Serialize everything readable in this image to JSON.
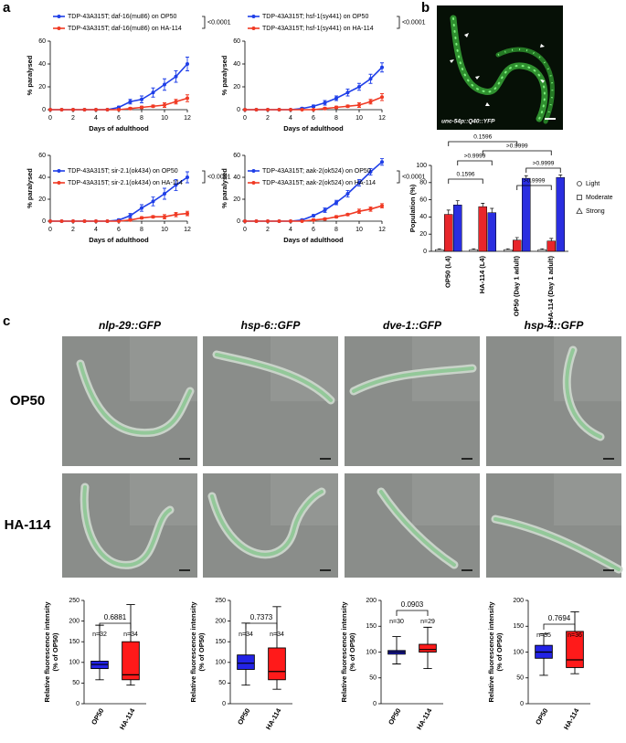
{
  "panel_labels": [
    "a",
    "b",
    "c"
  ],
  "micrograph_b": {
    "caption": "unc-54p::Q40::YFP"
  },
  "micrographs_c": {
    "columns": [
      "nlp-29::GFP",
      "hsp-6::GFP",
      "dve-1::GFP",
      "hsp-4::GFP"
    ],
    "rows": [
      "OP50",
      "HA-114"
    ]
  },
  "chart_data": [
    {
      "type": "line",
      "xlabel": "Days of adulthood",
      "ylabel": "% paralysed",
      "xlim": [
        0,
        12
      ],
      "ylim": [
        0,
        60
      ],
      "xticks": [
        0,
        2,
        4,
        6,
        8,
        10,
        12
      ],
      "yticks": [
        0,
        20,
        40,
        60
      ],
      "annotation": "<0.0001",
      "x": [
        0,
        1,
        2,
        3,
        4,
        5,
        6,
        7,
        8,
        9,
        10,
        11,
        12
      ],
      "series": [
        {
          "name": "TDP-43A315T; daf-16(mu86) on OP50",
          "color": "#1f3fe8",
          "values": [
            0,
            0,
            0,
            0,
            0,
            0,
            2,
            7,
            9,
            15,
            22,
            29,
            40
          ],
          "errors": [
            0,
            0,
            0,
            0,
            0,
            0,
            1,
            2,
            3,
            4,
            5,
            5,
            6
          ]
        },
        {
          "name": "TDP-43A315T; daf-16(mu86) on HA-114",
          "color": "#f03a24",
          "values": [
            0,
            0,
            0,
            0,
            0,
            0,
            0,
            1,
            2,
            3,
            4,
            7,
            10
          ],
          "errors": [
            0,
            0,
            0,
            0,
            0,
            0,
            0,
            1,
            1,
            1,
            2,
            2,
            3
          ]
        }
      ]
    },
    {
      "type": "line",
      "xlabel": "Days of adulthood",
      "ylabel": "% paralysed",
      "xlim": [
        0,
        12
      ],
      "ylim": [
        0,
        60
      ],
      "xticks": [
        0,
        2,
        4,
        6,
        8,
        10,
        12
      ],
      "yticks": [
        0,
        20,
        40,
        60
      ],
      "annotation": "<0.0001",
      "x": [
        0,
        1,
        2,
        3,
        4,
        5,
        6,
        7,
        8,
        9,
        10,
        11,
        12
      ],
      "series": [
        {
          "name": "TDP-43A315T; hsf-1(sy441) on OP50",
          "color": "#1f3fe8",
          "values": [
            0,
            0,
            0,
            0,
            0,
            1,
            3,
            6,
            10,
            15,
            20,
            27,
            37
          ],
          "errors": [
            0,
            0,
            0,
            0,
            0,
            1,
            1,
            2,
            2,
            3,
            3,
            4,
            4
          ]
        },
        {
          "name": "TDP-43A315T; hsf-1(sy441) on HA-114",
          "color": "#f03a24",
          "values": [
            0,
            0,
            0,
            0,
            0,
            0,
            0,
            1,
            2,
            3,
            4,
            7,
            11
          ],
          "errors": [
            0,
            0,
            0,
            0,
            0,
            0,
            0,
            1,
            1,
            1,
            2,
            2,
            3
          ]
        }
      ]
    },
    {
      "type": "line",
      "xlabel": "Days of adulthood",
      "ylabel": "% paralysed",
      "xlim": [
        0,
        12
      ],
      "ylim": [
        0,
        60
      ],
      "xticks": [
        0,
        2,
        4,
        6,
        8,
        10,
        12
      ],
      "yticks": [
        0,
        20,
        40,
        60
      ],
      "annotation": "<0.0001",
      "x": [
        0,
        1,
        2,
        3,
        4,
        5,
        6,
        7,
        8,
        9,
        10,
        11,
        12
      ],
      "series": [
        {
          "name": "TDP-43A315T; sir-2.1(ok434) on OP50",
          "color": "#1f3fe8",
          "values": [
            0,
            0,
            0,
            0,
            0,
            0,
            1,
            5,
            12,
            18,
            25,
            33,
            40
          ],
          "errors": [
            0,
            0,
            0,
            0,
            0,
            0,
            1,
            2,
            3,
            4,
            5,
            5,
            5
          ]
        },
        {
          "name": "TDP-43A315T; sir-2.1(ok434) on HA-114",
          "color": "#f03a24",
          "values": [
            0,
            0,
            0,
            0,
            0,
            0,
            0,
            1,
            3,
            4,
            4,
            6,
            7
          ],
          "errors": [
            0,
            0,
            0,
            0,
            0,
            0,
            0,
            1,
            1,
            1,
            2,
            2,
            2
          ]
        }
      ]
    },
    {
      "type": "line",
      "xlabel": "Days of adulthood",
      "ylabel": "% paralysed",
      "xlim": [
        0,
        12
      ],
      "ylim": [
        0,
        60
      ],
      "xticks": [
        0,
        2,
        4,
        6,
        8,
        10,
        12
      ],
      "yticks": [
        0,
        20,
        40,
        60
      ],
      "annotation": "<0.0001",
      "x": [
        0,
        1,
        2,
        3,
        4,
        5,
        6,
        7,
        8,
        9,
        10,
        11,
        12
      ],
      "series": [
        {
          "name": "TDP-43A315T; aak-2(ok524) on OP50",
          "color": "#1f3fe8",
          "values": [
            0,
            0,
            0,
            0,
            0,
            1,
            5,
            10,
            17,
            25,
            35,
            45,
            54
          ],
          "errors": [
            0,
            0,
            0,
            0,
            0,
            1,
            1,
            2,
            2,
            3,
            3,
            3,
            3
          ]
        },
        {
          "name": "TDP-43A315T; aak-2(ok524) on HA-114",
          "color": "#f03a24",
          "values": [
            0,
            0,
            0,
            0,
            0,
            0,
            1,
            2,
            4,
            6,
            9,
            11,
            14
          ],
          "errors": [
            0,
            0,
            0,
            0,
            0,
            0,
            1,
            1,
            1,
            1,
            2,
            2,
            2
          ]
        }
      ]
    },
    {
      "type": "bar",
      "ylabel": "Population (%)",
      "ylim": [
        0,
        100
      ],
      "yticks": [
        0,
        20,
        40,
        60,
        80,
        100
      ],
      "categories": [
        "OP50 (L4)",
        "HA-114 (L4)",
        "OP50 (Day 1 adult)",
        "HA-114 (Day 1 adult)"
      ],
      "series": [
        {
          "name": "Light",
          "color": "#d9d9d9",
          "marker": "circle",
          "values": [
            2,
            2,
            2,
            2
          ],
          "errors": [
            1,
            1,
            1,
            1
          ]
        },
        {
          "name": "Moderate",
          "color": "#e8262b",
          "marker": "square",
          "values": [
            43,
            52,
            13,
            12
          ],
          "errors": [
            5,
            4,
            3,
            3
          ]
        },
        {
          "name": "Strong",
          "color": "#2a2ee0",
          "marker": "triangle",
          "values": [
            54,
            45,
            85,
            86
          ],
          "errors": [
            5,
            5,
            3,
            3
          ]
        }
      ],
      "annotations": [
        "0.1596",
        ">0.9999",
        "0.1596",
        ">0.9999",
        ">0.9999",
        ">0.9999"
      ]
    },
    {
      "type": "box",
      "ylabel": [
        "Relative fluorescence intensity",
        "(% of OP50)"
      ],
      "ylim": [
        0,
        250
      ],
      "yticks": [
        0,
        50,
        100,
        150,
        200,
        250
      ],
      "categories": [
        "OP50",
        "HA-114"
      ],
      "colors": [
        "#2323e6",
        "#ff1a1a"
      ],
      "stats": [
        [
          58,
          85,
          95,
          103,
          190
        ],
        [
          45,
          58,
          70,
          150,
          240
        ]
      ],
      "n_labels": [
        "n=32",
        "n=34"
      ],
      "p_value": "0.6881"
    },
    {
      "type": "box",
      "ylabel": [
        "Relative fluorescence intensity",
        "(% of OP50)"
      ],
      "ylim": [
        0,
        250
      ],
      "yticks": [
        0,
        50,
        100,
        150,
        200,
        250
      ],
      "categories": [
        "OP50",
        "HA-114"
      ],
      "colors": [
        "#2323e6",
        "#ff1a1a"
      ],
      "stats": [
        [
          45,
          83,
          98,
          118,
          195
        ],
        [
          35,
          58,
          78,
          135,
          235
        ]
      ],
      "n_labels": [
        "n=34",
        "n=34"
      ],
      "p_value": "0.7373"
    },
    {
      "type": "box",
      "ylabel": [
        "Relative fluorescence intensity",
        "(% of OP50)"
      ],
      "ylim": [
        0,
        200
      ],
      "yticks": [
        0,
        50,
        100,
        150,
        200
      ],
      "categories": [
        "OP50",
        "HA-114"
      ],
      "colors": [
        "#2323e6",
        "#ff1a1a"
      ],
      "stats": [
        [
          77,
          96,
          100,
          103,
          130
        ],
        [
          68,
          100,
          105,
          115,
          148
        ]
      ],
      "n_labels": [
        "n=30",
        "n=29"
      ],
      "p_value": "0.0903"
    },
    {
      "type": "box",
      "ylabel": [
        "Relative fluorescence intensity",
        "(% of OP50)"
      ],
      "ylim": [
        0,
        200
      ],
      "yticks": [
        0,
        50,
        100,
        150,
        200
      ],
      "categories": [
        "OP50",
        "HA-114"
      ],
      "colors": [
        "#2323e6",
        "#ff1a1a"
      ],
      "stats": [
        [
          55,
          88,
          100,
          113,
          135
        ],
        [
          58,
          70,
          85,
          140,
          178
        ]
      ],
      "n_labels": [
        "n=35",
        "n=36"
      ],
      "p_value": "0.7694"
    }
  ]
}
